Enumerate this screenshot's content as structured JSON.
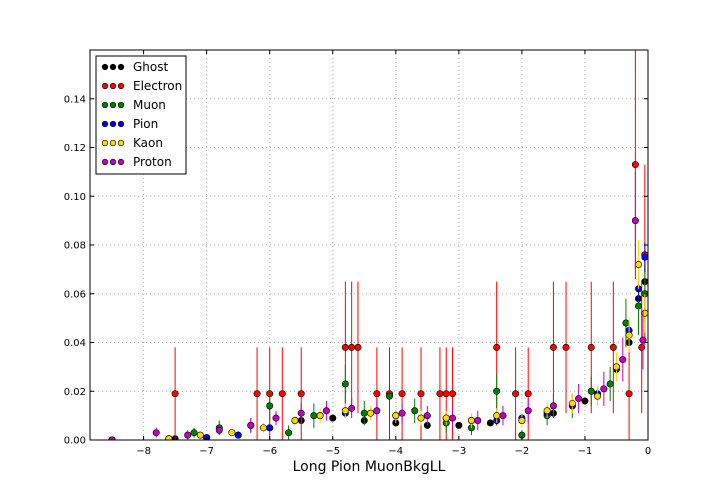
{
  "chart_data": {
    "type": "scatter",
    "title": "",
    "xlabel": "Long Pion MuonBkgLL",
    "ylabel": "",
    "xlim": [
      -8.85,
      0.0
    ],
    "ylim": [
      0.0,
      0.16
    ],
    "xticks": [
      -8,
      -7,
      -6,
      -5,
      -4,
      -3,
      -2,
      -1,
      0
    ],
    "xtick_labels": [
      "−8",
      "−7",
      "−6",
      "−5",
      "−4",
      "−3",
      "−2",
      "−1",
      "0"
    ],
    "yticks": [
      0.0,
      0.02,
      0.04,
      0.06,
      0.08,
      0.1,
      0.12,
      0.14
    ],
    "ytick_labels": [
      "0.00",
      "0.02",
      "0.04",
      "0.06",
      "0.08",
      "0.10",
      "0.12",
      "0.14"
    ],
    "grid": true,
    "legend_position": "top-left",
    "error_bars": true,
    "series": [
      {
        "name": "Ghost",
        "color": "#000000",
        "x": [
          -8.5,
          -7.5,
          -7.0,
          -6.5,
          -6.0,
          -5.5,
          -5.0,
          -4.5,
          -4.0,
          -3.5,
          -3.0,
          -2.5,
          -2.0,
          -1.5,
          -1.0,
          -0.7,
          -0.5,
          -0.3,
          -0.15,
          -0.05
        ],
        "y": [
          0.0,
          0.0005,
          0.001,
          0.002,
          0.005,
          0.008,
          0.009,
          0.008,
          0.007,
          0.006,
          0.006,
          0.007,
          0.008,
          0.011,
          0.016,
          0.021,
          0.029,
          0.04,
          0.058,
          0.065
        ]
      },
      {
        "name": "Electron",
        "color": "#ff0000",
        "x": [
          -7.5,
          -6.2,
          -6.0,
          -5.8,
          -5.5,
          -4.8,
          -4.7,
          -4.6,
          -4.3,
          -4.1,
          -3.9,
          -3.6,
          -3.3,
          -3.2,
          -3.1,
          -2.4,
          -2.1,
          -1.9,
          -1.5,
          -1.3,
          -0.9,
          -0.55,
          -0.3,
          -0.2,
          -0.1,
          -0.05
        ],
        "y": [
          0.019,
          0.019,
          0.019,
          0.019,
          0.019,
          0.038,
          0.038,
          0.038,
          0.019,
          0.019,
          0.019,
          0.019,
          0.019,
          0.019,
          0.019,
          0.038,
          0.019,
          0.019,
          0.038,
          0.038,
          0.038,
          0.038,
          0.019,
          0.113,
          0.038,
          0.076
        ],
        "err": [
          0.019,
          0.019,
          0.019,
          0.019,
          0.019,
          0.027,
          0.027,
          0.027,
          0.019,
          0.019,
          0.019,
          0.019,
          0.019,
          0.019,
          0.019,
          0.027,
          0.019,
          0.019,
          0.027,
          0.027,
          0.027,
          0.027,
          0.019,
          0.047,
          0.027,
          0.037
        ]
      },
      {
        "name": "Muon",
        "color": "#008000",
        "x": [
          -8.5,
          -7.6,
          -7.2,
          -6.8,
          -6.3,
          -6.0,
          -5.7,
          -5.3,
          -4.8,
          -4.5,
          -4.1,
          -3.7,
          -3.2,
          -2.8,
          -2.4,
          -2.0,
          -1.6,
          -1.2,
          -0.9,
          -0.6,
          -0.35,
          -0.15,
          -0.05
        ],
        "y": [
          0.0,
          0.0005,
          0.003,
          0.005,
          0.006,
          0.014,
          0.003,
          0.01,
          0.023,
          0.011,
          0.018,
          0.012,
          0.007,
          0.005,
          0.02,
          0.002,
          0.01,
          0.014,
          0.02,
          0.023,
          0.048,
          0.055,
          0.06
        ],
        "err": [
          0.0,
          0.001,
          0.002,
          0.003,
          0.003,
          0.006,
          0.003,
          0.005,
          0.008,
          0.005,
          0.007,
          0.005,
          0.004,
          0.003,
          0.007,
          0.002,
          0.004,
          0.005,
          0.006,
          0.007,
          0.01,
          0.012,
          0.012
        ]
      },
      {
        "name": "Pion",
        "color": "#0000ff",
        "x": [
          -8.5,
          -7.6,
          -7.0,
          -6.5,
          -6.0,
          -5.6,
          -5.2,
          -4.8,
          -4.4,
          -4.0,
          -3.6,
          -3.2,
          -2.8,
          -2.4,
          -2.0,
          -1.6,
          -1.2,
          -0.8,
          -0.5,
          -0.3,
          -0.15,
          -0.05
        ],
        "y": [
          0.0,
          0.0005,
          0.001,
          0.002,
          0.005,
          0.008,
          0.01,
          0.011,
          0.011,
          0.01,
          0.009,
          0.009,
          0.008,
          0.008,
          0.009,
          0.011,
          0.014,
          0.019,
          0.03,
          0.045,
          0.062,
          0.075
        ],
        "err": [
          0.0,
          0.0005,
          0.0005,
          0.001,
          0.001,
          0.001,
          0.001,
          0.002,
          0.002,
          0.002,
          0.002,
          0.002,
          0.002,
          0.002,
          0.002,
          0.002,
          0.002,
          0.003,
          0.003,
          0.004,
          0.005,
          0.006
        ]
      },
      {
        "name": "Kaon",
        "color": "#ffd700",
        "x": [
          -8.5,
          -7.6,
          -7.1,
          -6.6,
          -6.1,
          -5.6,
          -5.2,
          -4.8,
          -4.4,
          -4.0,
          -3.6,
          -3.2,
          -2.8,
          -2.4,
          -2.0,
          -1.6,
          -1.2,
          -0.8,
          -0.5,
          -0.3,
          -0.15,
          -0.05
        ],
        "y": [
          0.0,
          0.0005,
          0.002,
          0.003,
          0.005,
          0.008,
          0.01,
          0.012,
          0.011,
          0.01,
          0.009,
          0.009,
          0.008,
          0.01,
          0.008,
          0.012,
          0.015,
          0.018,
          0.03,
          0.043,
          0.072,
          0.052
        ],
        "err": [
          0.0,
          0.0005,
          0.001,
          0.001,
          0.002,
          0.002,
          0.003,
          0.003,
          0.003,
          0.003,
          0.003,
          0.003,
          0.003,
          0.003,
          0.003,
          0.003,
          0.004,
          0.004,
          0.006,
          0.007,
          0.01,
          0.008
        ]
      },
      {
        "name": "Proton",
        "color": "#bf00bf",
        "x": [
          -8.5,
          -7.8,
          -7.3,
          -6.8,
          -6.3,
          -5.9,
          -5.5,
          -5.1,
          -4.7,
          -4.3,
          -3.9,
          -3.5,
          -3.1,
          -2.7,
          -2.3,
          -1.9,
          -1.5,
          -1.1,
          -0.7,
          -0.4,
          -0.2,
          -0.08
        ],
        "y": [
          0.0,
          0.003,
          0.002,
          0.004,
          0.006,
          0.009,
          0.011,
          0.012,
          0.013,
          0.012,
          0.011,
          0.01,
          0.009,
          0.008,
          0.01,
          0.012,
          0.014,
          0.017,
          0.021,
          0.033,
          0.09,
          0.041
        ],
        "err": [
          0.0,
          0.002,
          0.002,
          0.002,
          0.003,
          0.003,
          0.004,
          0.004,
          0.004,
          0.004,
          0.004,
          0.004,
          0.004,
          0.004,
          0.004,
          0.005,
          0.005,
          0.006,
          0.007,
          0.009,
          0.02,
          0.012
        ]
      }
    ]
  }
}
